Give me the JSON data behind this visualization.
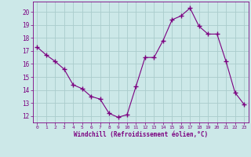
{
  "x": [
    0,
    1,
    2,
    3,
    4,
    5,
    6,
    7,
    8,
    9,
    10,
    11,
    12,
    13,
    14,
    15,
    16,
    17,
    18,
    19,
    20,
    21,
    22,
    23
  ],
  "y": [
    17.3,
    16.7,
    16.2,
    15.6,
    14.4,
    14.1,
    13.5,
    13.3,
    12.2,
    11.9,
    12.1,
    14.3,
    16.5,
    16.5,
    17.8,
    19.4,
    19.7,
    20.3,
    18.9,
    18.3,
    18.3,
    16.2,
    13.8,
    12.9
  ],
  "line_color": "#7b0080",
  "marker": "+",
  "marker_size": 4,
  "marker_linewidth": 1.0,
  "bg_color": "#cce8e8",
  "grid_color": "#aacccc",
  "xlabel": "Windchill (Refroidissement éolien,°C)",
  "xlabel_color": "#7b0080",
  "tick_color": "#7b0080",
  "ylim": [
    11.5,
    20.8
  ],
  "xlim": [
    -0.5,
    23.5
  ],
  "yticks": [
    12,
    13,
    14,
    15,
    16,
    17,
    18,
    19,
    20
  ],
  "xticks": [
    0,
    1,
    2,
    3,
    4,
    5,
    6,
    7,
    8,
    9,
    10,
    11,
    12,
    13,
    14,
    15,
    16,
    17,
    18,
    19,
    20,
    21,
    22,
    23
  ],
  "figsize": [
    3.2,
    2.0
  ],
  "dpi": 100
}
